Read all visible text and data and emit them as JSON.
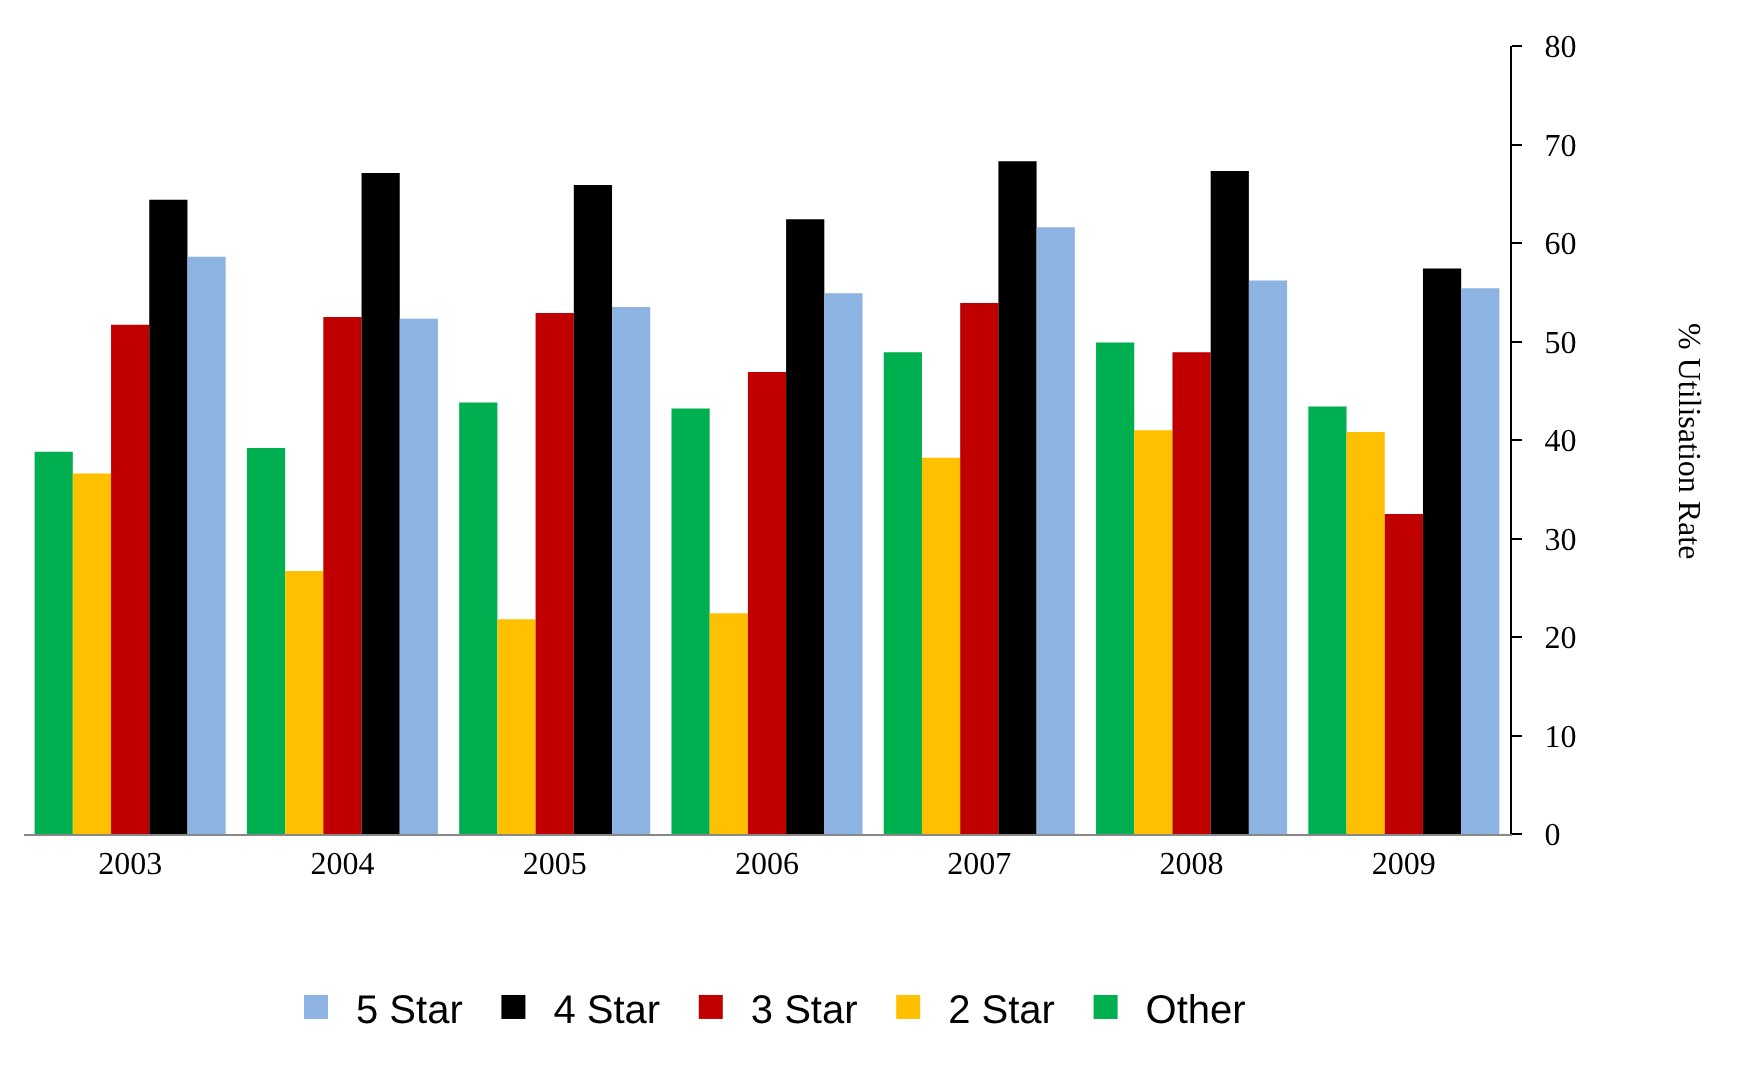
{
  "chart_data": {
    "type": "bar",
    "ylabel": "% Utilisation Rate",
    "categories": [
      "2003",
      "2004",
      "2005",
      "2006",
      "2007",
      "2008",
      "2009"
    ],
    "series": [
      {
        "name": "Other",
        "color": "#00b050",
        "values": [
          38.8,
          39.2,
          43.8,
          43.2,
          48.9,
          49.9,
          43.4
        ]
      },
      {
        "name": "2 Star",
        "color": "#ffc000",
        "values": [
          36.6,
          26.7,
          21.8,
          22.4,
          38.2,
          41.0,
          40.8
        ]
      },
      {
        "name": "3 Star",
        "color": "#c00000",
        "values": [
          51.7,
          52.5,
          52.9,
          46.9,
          53.9,
          48.9,
          32.5
        ]
      },
      {
        "name": "4 Star",
        "color": "#000000",
        "values": [
          64.4,
          67.1,
          65.9,
          62.4,
          68.3,
          67.3,
          57.4
        ]
      },
      {
        "name": "5 Star",
        "color": "#8db3e2",
        "values": [
          58.6,
          52.3,
          53.5,
          54.9,
          61.6,
          56.2,
          55.4
        ]
      }
    ],
    "ylim": [
      0,
      80
    ],
    "yticks": [
      0,
      10,
      20,
      30,
      40,
      50,
      60,
      70,
      80
    ],
    "grid": false,
    "legend": "bottom"
  }
}
